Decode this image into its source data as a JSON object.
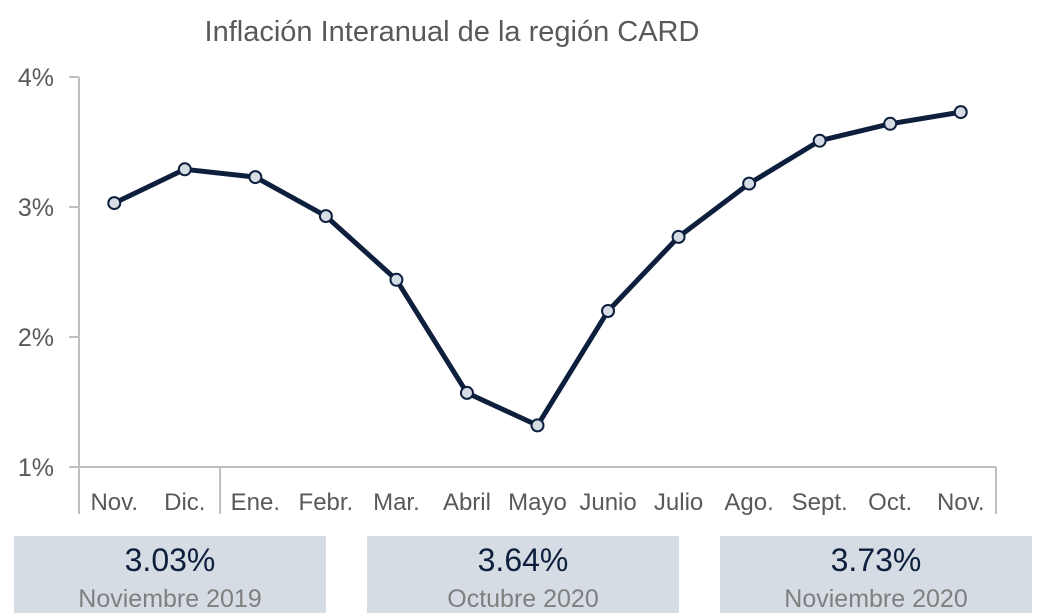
{
  "chart_data": {
    "type": "line",
    "title": "Inflación Interanual de la región CARD",
    "xlabel": "",
    "ylabel": "",
    "categories": [
      "Nov.",
      "Dic.",
      "Ene.",
      "Febr.",
      "Mar.",
      "Abril",
      "Mayo",
      "Junio",
      "Julio",
      "Ago.",
      "Sept.",
      "Oct.",
      "Nov."
    ],
    "series": [
      {
        "values": [
          3.03,
          3.29,
          3.23,
          2.93,
          2.44,
          1.57,
          1.32,
          2.2,
          2.77,
          3.18,
          3.51,
          3.64,
          3.73
        ]
      }
    ],
    "ylim": [
      1,
      4
    ],
    "yticks": [
      1,
      2,
      3,
      4
    ],
    "ytick_labels": [
      "1%",
      "2%",
      "3%",
      "4%"
    ],
    "grid": false,
    "colors": {
      "line": "#0d1f3d",
      "marker_fill": "#d6dce4"
    }
  },
  "cards": [
    {
      "value": "3.03%",
      "label": "Noviembre 2019"
    },
    {
      "value": "3.64%",
      "label": "Octubre 2020"
    },
    {
      "value": "3.73%",
      "label": "Noviembre 2020"
    }
  ]
}
